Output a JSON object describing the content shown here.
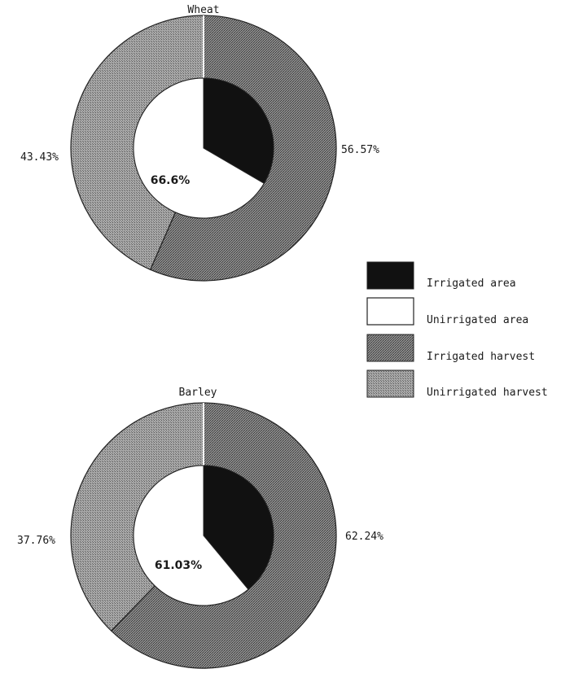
{
  "chart_data": [
    {
      "type": "pie",
      "title": "Wheat",
      "inner": {
        "segments": [
          {
            "series": "Irrigated area",
            "value": 33.4
          },
          {
            "series": "Unirrigated area",
            "value": 66.6
          }
        ],
        "center_label": "66.6%"
      },
      "outer": {
        "segments": [
          {
            "series": "Irrigated harvest",
            "value": 56.57,
            "label": "56.57%"
          },
          {
            "series": "Unirrigated harvest",
            "value": 43.43,
            "label": "43.43%"
          }
        ]
      }
    },
    {
      "type": "pie",
      "title": "Barley",
      "inner": {
        "segments": [
          {
            "series": "Irrigated area",
            "value": 38.97
          },
          {
            "series": "Unirrigated area",
            "value": 61.03
          }
        ],
        "center_label": "61.03%"
      },
      "outer": {
        "segments": [
          {
            "series": "Irrigated harvest",
            "value": 62.24,
            "label": "62.24%"
          },
          {
            "series": "Unirrigated harvest",
            "value": 37.76,
            "label": "37.76%"
          }
        ]
      }
    }
  ],
  "legend": [
    {
      "label": "Irrigated area",
      "fill": "#111111"
    },
    {
      "label": "Unirrigated area",
      "fill": "#ffffff"
    },
    {
      "label": "Irrigated harvest",
      "fill": "#6e6e6e"
    },
    {
      "label": "Unirrigated harvest",
      "fill": "#9a9a9a"
    }
  ],
  "colors": {
    "irrigated_area": "#111111",
    "unirrigated_area": "#ffffff",
    "irrigated_harvest": "#6e6e6e",
    "unirrigated_harvest": "#9a9a9a",
    "outline": "#222222"
  }
}
